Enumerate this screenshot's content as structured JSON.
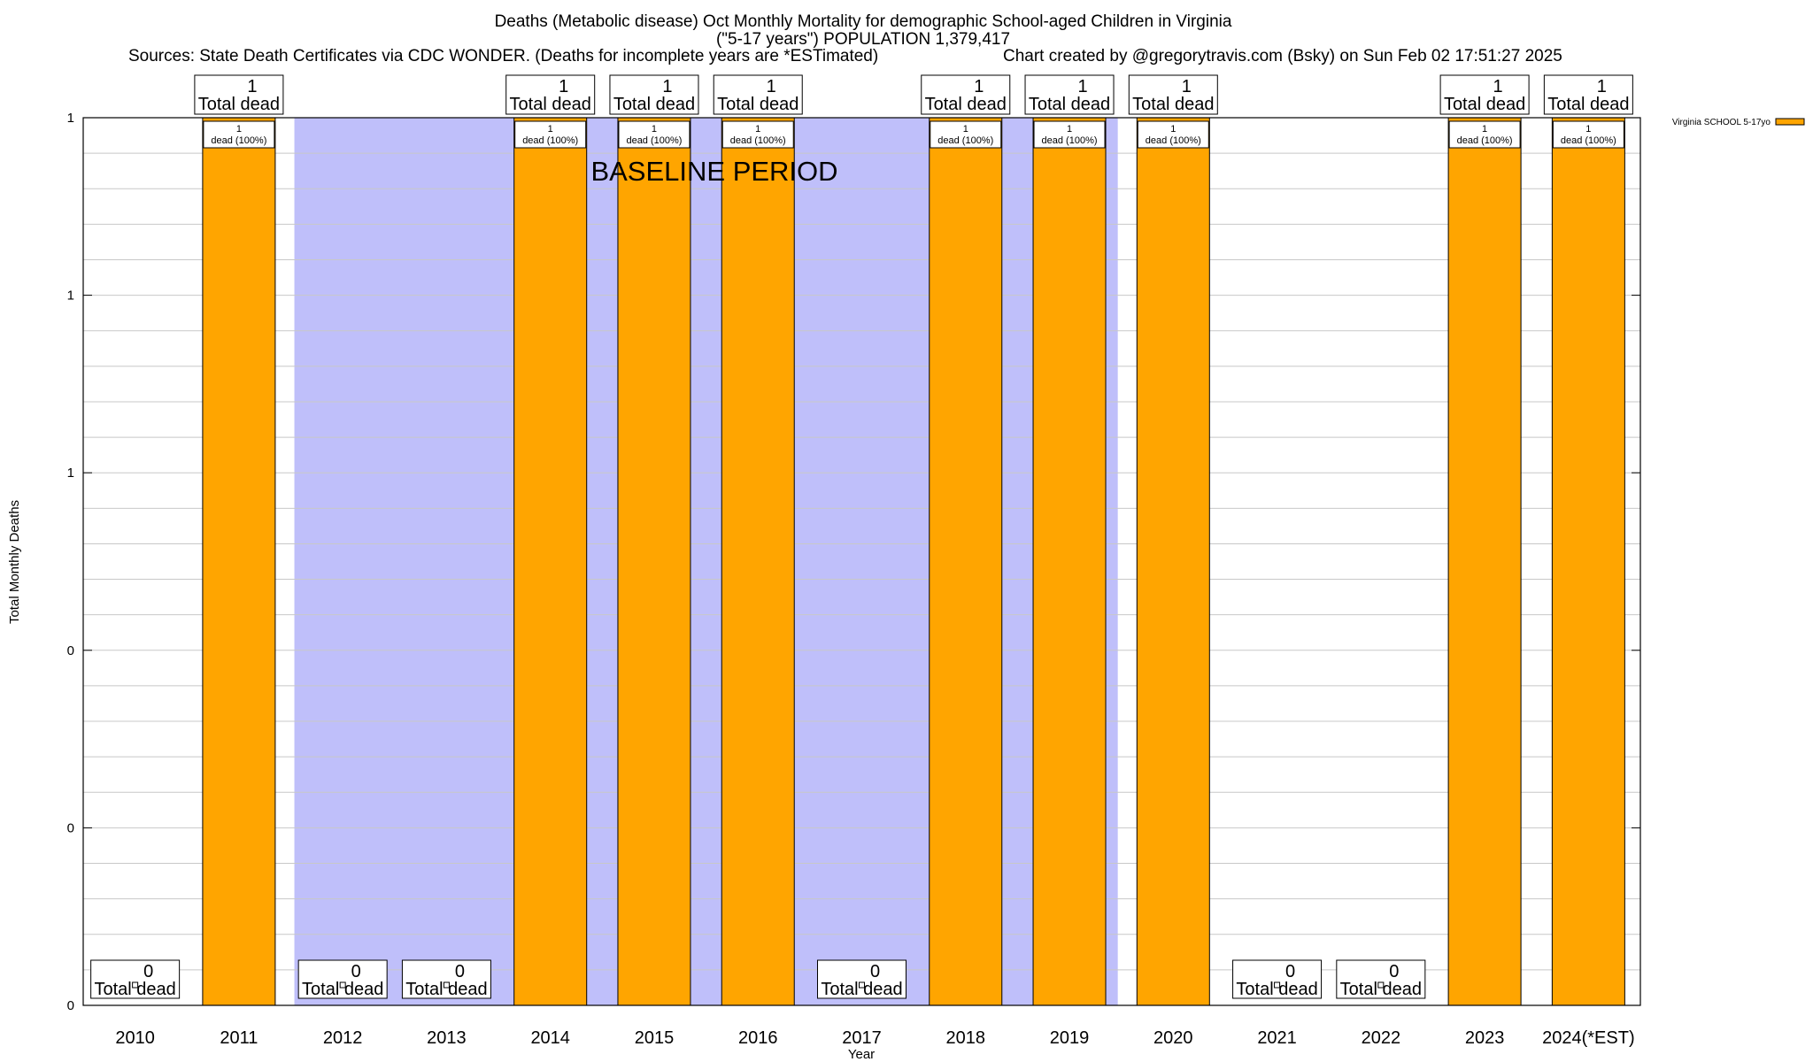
{
  "title": {
    "line1": "Deaths (Metabolic disease) Oct Monthly Mortality for demographic School-aged Children in Virginia",
    "line2": "(\"5-17 years\") POPULATION 1,379,417",
    "sources": "Sources: State Death Certificates via CDC WONDER. (Deaths for incomplete years are *ESTimated)",
    "credit": "Chart created by @gregorytravis.com (Bsky) on Sun Feb 02 17:51:27 2025"
  },
  "colors": {
    "bar": "#ffa500",
    "baseline_band": "#bfbffa",
    "grid": "#c8c8c8"
  },
  "chart_data": {
    "type": "bar",
    "title": "Deaths (Metabolic disease) Oct Monthly Mortality for demographic School-aged Children in Virginia",
    "xlabel": "Year",
    "ylabel": "Total Monthly Deaths",
    "categories": [
      "2010",
      "2011",
      "2012",
      "2013",
      "2014",
      "2015",
      "2016",
      "2017",
      "2018",
      "2019",
      "2020",
      "2021",
      "2022",
      "2023",
      "2024(*EST)"
    ],
    "series": [
      {
        "name": "Virginia SCHOOL 5-17yo",
        "values": [
          0,
          1,
          0,
          0,
          1,
          1,
          1,
          0,
          1,
          1,
          1,
          0,
          0,
          1,
          1
        ]
      }
    ],
    "total_label_suffix": "Total dead",
    "bar_label_suffix": "dead (100%)",
    "ylim": [
      0,
      1
    ],
    "yticks": [
      {
        "value": 0,
        "label": "0"
      },
      {
        "value": 0.2,
        "label": "0"
      },
      {
        "value": 0.4,
        "label": "0"
      },
      {
        "value": 0.6,
        "label": "1"
      },
      {
        "value": 0.8,
        "label": "1"
      },
      {
        "value": 1.0,
        "label": "1"
      }
    ],
    "baseline_period": {
      "label": "BASELINE PERIOD",
      "from": "2012",
      "to": "2019"
    },
    "legend_position": "top-right",
    "grid": true
  }
}
